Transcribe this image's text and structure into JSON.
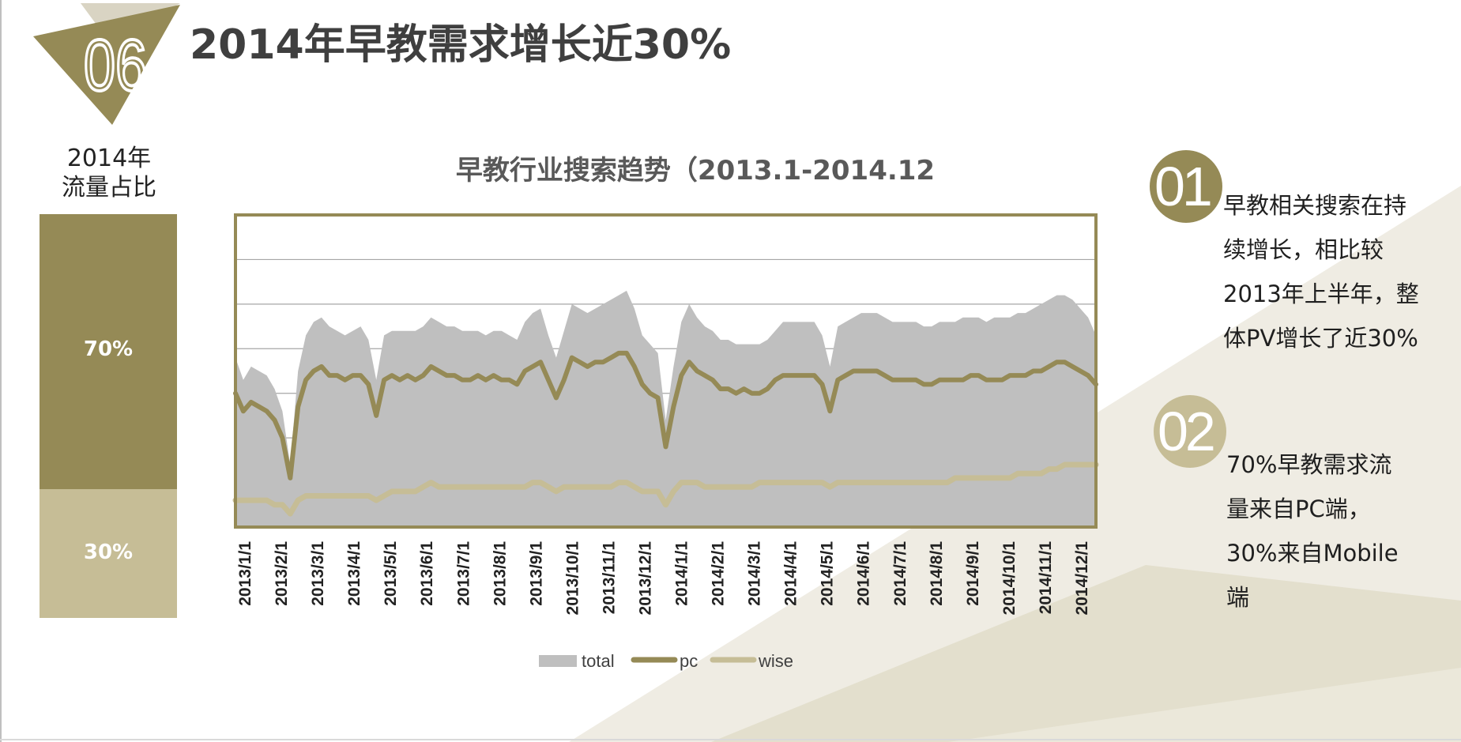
{
  "slide": {
    "number": "06",
    "title": "2014年早教需求增长近30%"
  },
  "traffic_share": {
    "title_line1": "2014年",
    "title_line2": "流量占比",
    "pc_share": 70,
    "pc_label": "70%",
    "wise_share": 30,
    "wise_label": "30%",
    "pc_color": "#958a56",
    "wise_color": "#c6bd96"
  },
  "points": [
    {
      "number": "01",
      "lines": [
        "早教相关搜索在持",
        "续增长，相比较",
        "2013年上半年，整",
        "体PV增长了近30%"
      ]
    },
    {
      "number": "02",
      "lines": [
        "70%早教需求流",
        "量来自PC端，",
        "30%来自Mobile",
        "端"
      ]
    }
  ],
  "colors": {
    "accent": "#958a56",
    "accent_light": "#c6bd96",
    "total_fill": "#bfbfbf",
    "background_shape": "#e6e2d3"
  },
  "chart_data": {
    "type": "area",
    "title": "早教行业搜索趋势（2013.1-2014.12",
    "x_tick_labels": [
      "2013/1/1",
      "2013/2/1",
      "2013/3/1",
      "2013/4/1",
      "2013/5/1",
      "2013/6/1",
      "2013/7/1",
      "2013/8/1",
      "2013/9/1",
      "2013/10/1",
      "2013/11/1",
      "2013/12/1",
      "2014/1/1",
      "2014/2/1",
      "2014/3/1",
      "2014/4/1",
      "2014/5/1",
      "2014/6/1",
      "2014/7/1",
      "2014/8/1",
      "2014/9/1",
      "2014/10/1",
      "2014/11/1",
      "2014/12/1"
    ],
    "x_range": [
      "2013/1/1",
      "2014/12/31"
    ],
    "ylim": [
      0,
      7
    ],
    "y_gridlines": [
      1,
      2,
      3,
      4,
      5,
      6
    ],
    "y_tick_labels_shown": false,
    "legend": {
      "placement": "bottom",
      "entries": [
        "total",
        "pc",
        "wise"
      ]
    },
    "series": [
      {
        "name": "total",
        "style": "area",
        "color": "#bfbfbf",
        "values": [
          3.8,
          3.3,
          3.6,
          3.5,
          3.4,
          3.1,
          2.6,
          1.4,
          3.5,
          4.3,
          4.6,
          4.7,
          4.5,
          4.4,
          4.3,
          4.4,
          4.5,
          4.2,
          3.3,
          4.3,
          4.4,
          4.4,
          4.4,
          4.4,
          4.5,
          4.7,
          4.6,
          4.5,
          4.5,
          4.4,
          4.4,
          4.4,
          4.3,
          4.4,
          4.4,
          4.3,
          4.2,
          4.6,
          4.8,
          4.9,
          4.3,
          3.8,
          4.4,
          5.0,
          4.9,
          4.8,
          4.9,
          5.0,
          5.1,
          5.2,
          5.3,
          4.9,
          4.3,
          4.1,
          3.9,
          2.4,
          3.6,
          4.6,
          5.0,
          4.7,
          4.5,
          4.4,
          4.2,
          4.2,
          4.1,
          4.1,
          4.1,
          4.1,
          4.2,
          4.4,
          4.6,
          4.6,
          4.6,
          4.6,
          4.6,
          4.3,
          3.6,
          4.5,
          4.6,
          4.7,
          4.8,
          4.8,
          4.8,
          4.7,
          4.6,
          4.6,
          4.6,
          4.6,
          4.5,
          4.5,
          4.6,
          4.6,
          4.6,
          4.7,
          4.7,
          4.7,
          4.6,
          4.7,
          4.7,
          4.7,
          4.8,
          4.8,
          4.9,
          5.0,
          5.1,
          5.2,
          5.2,
          5.1,
          4.9,
          4.7,
          4.3
        ]
      },
      {
        "name": "pc",
        "style": "line",
        "color": "#958a56",
        "values": [
          3.0,
          2.6,
          2.8,
          2.7,
          2.6,
          2.4,
          2.0,
          1.1,
          2.7,
          3.3,
          3.5,
          3.6,
          3.4,
          3.4,
          3.3,
          3.4,
          3.4,
          3.2,
          2.5,
          3.3,
          3.4,
          3.3,
          3.4,
          3.3,
          3.4,
          3.6,
          3.5,
          3.4,
          3.4,
          3.3,
          3.3,
          3.4,
          3.3,
          3.4,
          3.3,
          3.3,
          3.2,
          3.5,
          3.6,
          3.7,
          3.3,
          2.9,
          3.3,
          3.8,
          3.7,
          3.6,
          3.7,
          3.7,
          3.8,
          3.9,
          3.9,
          3.6,
          3.2,
          3.0,
          2.9,
          1.8,
          2.7,
          3.4,
          3.7,
          3.5,
          3.4,
          3.3,
          3.1,
          3.1,
          3.0,
          3.1,
          3.0,
          3.0,
          3.1,
          3.3,
          3.4,
          3.4,
          3.4,
          3.4,
          3.4,
          3.2,
          2.6,
          3.3,
          3.4,
          3.5,
          3.5,
          3.5,
          3.5,
          3.4,
          3.3,
          3.3,
          3.3,
          3.3,
          3.2,
          3.2,
          3.3,
          3.3,
          3.3,
          3.3,
          3.4,
          3.4,
          3.3,
          3.3,
          3.3,
          3.4,
          3.4,
          3.4,
          3.5,
          3.5,
          3.6,
          3.7,
          3.7,
          3.6,
          3.5,
          3.4,
          3.2
        ]
      },
      {
        "name": "wise",
        "style": "line",
        "color": "#c6bd96",
        "values": [
          0.6,
          0.6,
          0.6,
          0.6,
          0.6,
          0.5,
          0.5,
          0.3,
          0.6,
          0.7,
          0.7,
          0.7,
          0.7,
          0.7,
          0.7,
          0.7,
          0.7,
          0.7,
          0.6,
          0.7,
          0.8,
          0.8,
          0.8,
          0.8,
          0.9,
          1.0,
          0.9,
          0.9,
          0.9,
          0.9,
          0.9,
          0.9,
          0.9,
          0.9,
          0.9,
          0.9,
          0.9,
          0.9,
          1.0,
          1.0,
          0.9,
          0.8,
          0.9,
          0.9,
          0.9,
          0.9,
          0.9,
          0.9,
          0.9,
          1.0,
          1.0,
          0.9,
          0.8,
          0.8,
          0.8,
          0.5,
          0.8,
          1.0,
          1.0,
          1.0,
          0.9,
          0.9,
          0.9,
          0.9,
          0.9,
          0.9,
          0.9,
          1.0,
          1.0,
          1.0,
          1.0,
          1.0,
          1.0,
          1.0,
          1.0,
          1.0,
          0.9,
          1.0,
          1.0,
          1.0,
          1.0,
          1.0,
          1.0,
          1.0,
          1.0,
          1.0,
          1.0,
          1.0,
          1.0,
          1.0,
          1.0,
          1.0,
          1.1,
          1.1,
          1.1,
          1.1,
          1.1,
          1.1,
          1.1,
          1.1,
          1.2,
          1.2,
          1.2,
          1.2,
          1.3,
          1.3,
          1.4,
          1.4,
          1.4,
          1.4,
          1.4
        ]
      }
    ]
  }
}
